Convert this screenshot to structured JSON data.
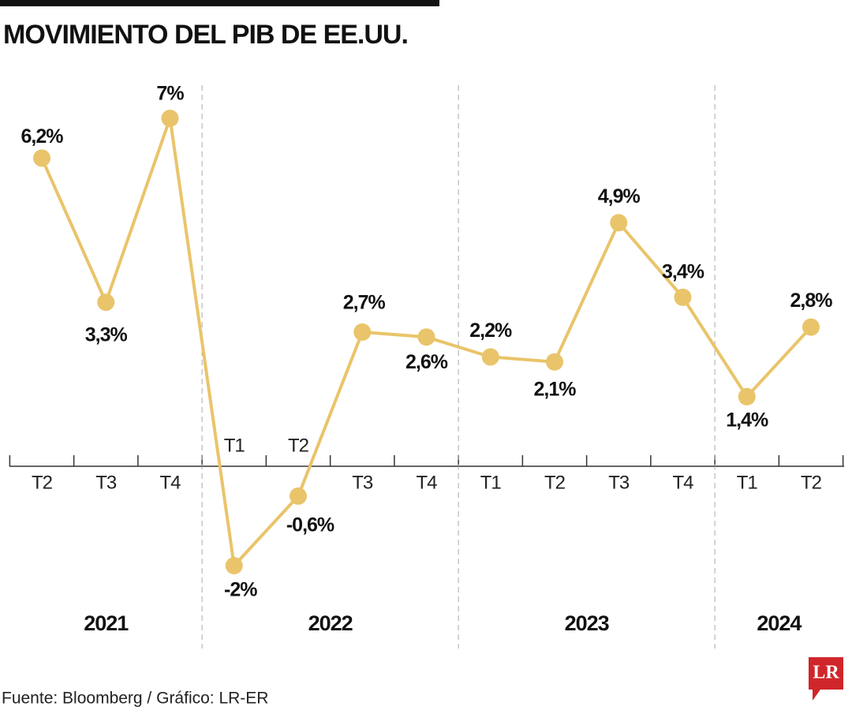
{
  "chart_data": {
    "type": "line",
    "title": "MOVIMIENTO DEL PIB DE EE.UU.",
    "source": "Fuente: Bloomberg / Gráfico: LR-ER",
    "color": "#e9c46a",
    "ylim": [
      -3,
      8
    ],
    "groups": [
      {
        "label": "2021",
        "categories": [
          "T2",
          "T3",
          "T4"
        ],
        "values": [
          6.2,
          3.3,
          7
        ],
        "value_labels": [
          "6,2%",
          "3,3%",
          "7%"
        ]
      },
      {
        "label": "2022",
        "categories": [
          "T1",
          "T2",
          "T3",
          "T4"
        ],
        "values": [
          -2,
          -0.6,
          2.7,
          2.6
        ],
        "value_labels": [
          "-2%",
          "-0,6%",
          "2,7%",
          "2,6%"
        ]
      },
      {
        "label": "2023",
        "categories": [
          "T1",
          "T2",
          "T3",
          "T4"
        ],
        "values": [
          2.2,
          2.1,
          4.9,
          3.4
        ],
        "value_labels": [
          "2,2%",
          "2,1%",
          "4,9%",
          "3,4%"
        ]
      },
      {
        "label": "2024",
        "categories": [
          "T1",
          "T2"
        ],
        "values": [
          1.4,
          2.8
        ],
        "value_labels": [
          "1,4%",
          "2,8%"
        ]
      }
    ]
  },
  "logo": "LR"
}
